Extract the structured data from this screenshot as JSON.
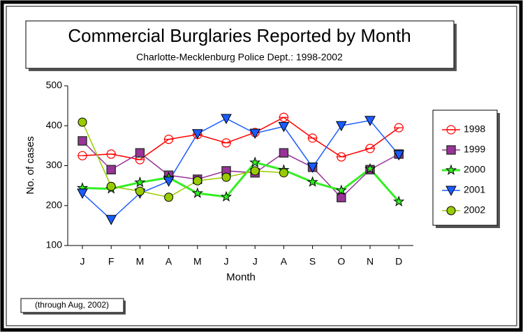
{
  "chart_data": {
    "type": "line",
    "title": "Commercial Burglaries Reported by Month",
    "subtitle": "Charlotte-Mecklenburg Police Dept.: 1998-2002",
    "x_label": "Month",
    "y_label": "No. of cases",
    "annotation": "(through  Aug, 2002)",
    "categories": [
      "J",
      "F",
      "M",
      "A",
      "M",
      "J",
      "J",
      "A",
      "S",
      "O",
      "N",
      "D"
    ],
    "ylim": [
      100,
      500
    ],
    "yticks": [
      100,
      200,
      300,
      400,
      500
    ],
    "series": [
      {
        "name": "1998",
        "color": "#ff0000",
        "marker": "circle-open",
        "values": [
          325,
          329,
          315,
          366,
          378,
          357,
          383,
          421,
          369,
          322,
          343,
          395
        ]
      },
      {
        "name": "1999",
        "color": "#993399",
        "marker": "square",
        "values": [
          362,
          290,
          332,
          276,
          266,
          287,
          282,
          332,
          296,
          220,
          290,
          329
        ]
      },
      {
        "name": "2000",
        "color": "#33ee22",
        "marker": "star",
        "values": [
          244,
          242,
          258,
          270,
          231,
          222,
          308,
          289,
          259,
          238,
          292,
          210
        ]
      },
      {
        "name": "2001",
        "color": "#1a5cff",
        "marker": "triangle-down",
        "values": [
          231,
          165,
          231,
          261,
          380,
          418,
          381,
          398,
          296,
          400,
          413,
          327
        ]
      },
      {
        "name": "2002",
        "color": "#99cc00",
        "marker": "circle",
        "values": [
          409,
          248,
          236,
          221,
          262,
          271,
          287,
          282,
          null,
          null,
          null,
          null
        ]
      }
    ]
  }
}
